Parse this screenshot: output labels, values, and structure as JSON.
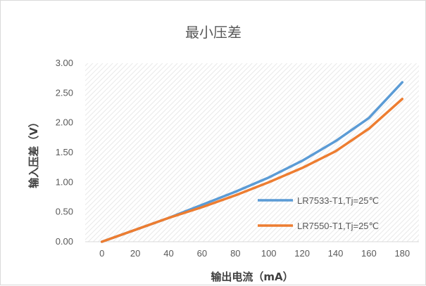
{
  "chart_data": {
    "type": "line",
    "title": "最小压差",
    "xlabel": "输出电流（mA）",
    "ylabel": "输入压差（V）",
    "x": [
      0,
      20,
      40,
      60,
      80,
      100,
      120,
      140,
      160,
      180
    ],
    "x_tick_labels": [
      "0",
      "20",
      "40",
      "60",
      "80",
      "100",
      "120",
      "140",
      "160",
      "180"
    ],
    "y_tick_labels": [
      "0.00",
      "0.50",
      "1.00",
      "1.50",
      "2.00",
      "2.50",
      "3.00"
    ],
    "xlim": [
      -10,
      190
    ],
    "ylim": [
      0,
      3.0
    ],
    "grid": false,
    "plot_background": "diagonal-hatch",
    "legend_position": "bottom-right",
    "series": [
      {
        "name": "LR7533-T1,Tj=25℃",
        "color": "#5b9bd5",
        "values": [
          0.0,
          0.2,
          0.4,
          0.62,
          0.84,
          1.08,
          1.36,
          1.69,
          2.08,
          2.68
        ]
      },
      {
        "name": "LR7550-T1,Tj=25℃",
        "color": "#ed7d31",
        "values": [
          0.0,
          0.2,
          0.4,
          0.58,
          0.78,
          1.0,
          1.24,
          1.52,
          1.9,
          2.4
        ]
      }
    ]
  }
}
